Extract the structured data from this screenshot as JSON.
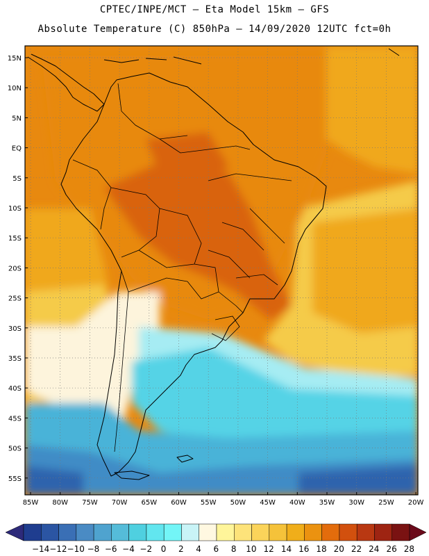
{
  "title_line1": "CPTEC/INPE/MCT –  Eta Model 15km – GFS",
  "title_line2": "Absolute Temperature (C) 850hPa – 14/09/2020 12UTC fct=0h",
  "latitude_labels": [
    "15N",
    "10N",
    "5N",
    "EQ",
    "5S",
    "10S",
    "15S",
    "20S",
    "25S",
    "30S",
    "35S",
    "40S",
    "45S",
    "50S",
    "55S"
  ],
  "longitude_labels": [
    "85W",
    "80W",
    "75W",
    "70W",
    "65W",
    "60W",
    "55W",
    "50W",
    "45W",
    "40W",
    "35W",
    "30W",
    "25W",
    "20W"
  ],
  "colorbar": {
    "tick_labels": [
      "-14",
      "-12",
      "-10",
      "-8",
      "-6",
      "-4",
      "-2",
      "0",
      "2",
      "4",
      "6",
      "8",
      "10",
      "12",
      "14",
      "16",
      "18",
      "20",
      "22",
      "24",
      "26",
      "28"
    ],
    "colors": [
      "#1f3d8f",
      "#2b55a3",
      "#3a6fb5",
      "#4a8bc4",
      "#4fa3cf",
      "#55bcd9",
      "#4fd0e0",
      "#62e6ef",
      "#73f5f7",
      "#c9f4f7",
      "#fff8e1",
      "#fff59a",
      "#fde37a",
      "#fbd45a",
      "#f5c23a",
      "#f0ae1a",
      "#eb9210",
      "#e36c0c",
      "#d2500e",
      "#b93812",
      "#9e2412",
      "#7a1212"
    ],
    "under_color": "#2d2a7a",
    "over_color": "#6b0a1a"
  },
  "palette": {
    "deep_orange": "#d9630f",
    "orange": "#e8890f",
    "amber": "#f0a81c",
    "yellow": "#f5cb4a",
    "pale_yellow": "#fbe69a",
    "cream": "#fdf4dc",
    "light_cyan": "#a6ecf3",
    "cyan": "#55d3e6",
    "sky": "#4ab3d8",
    "blue": "#3f8cc6",
    "deep_blue": "#2f64ad"
  }
}
